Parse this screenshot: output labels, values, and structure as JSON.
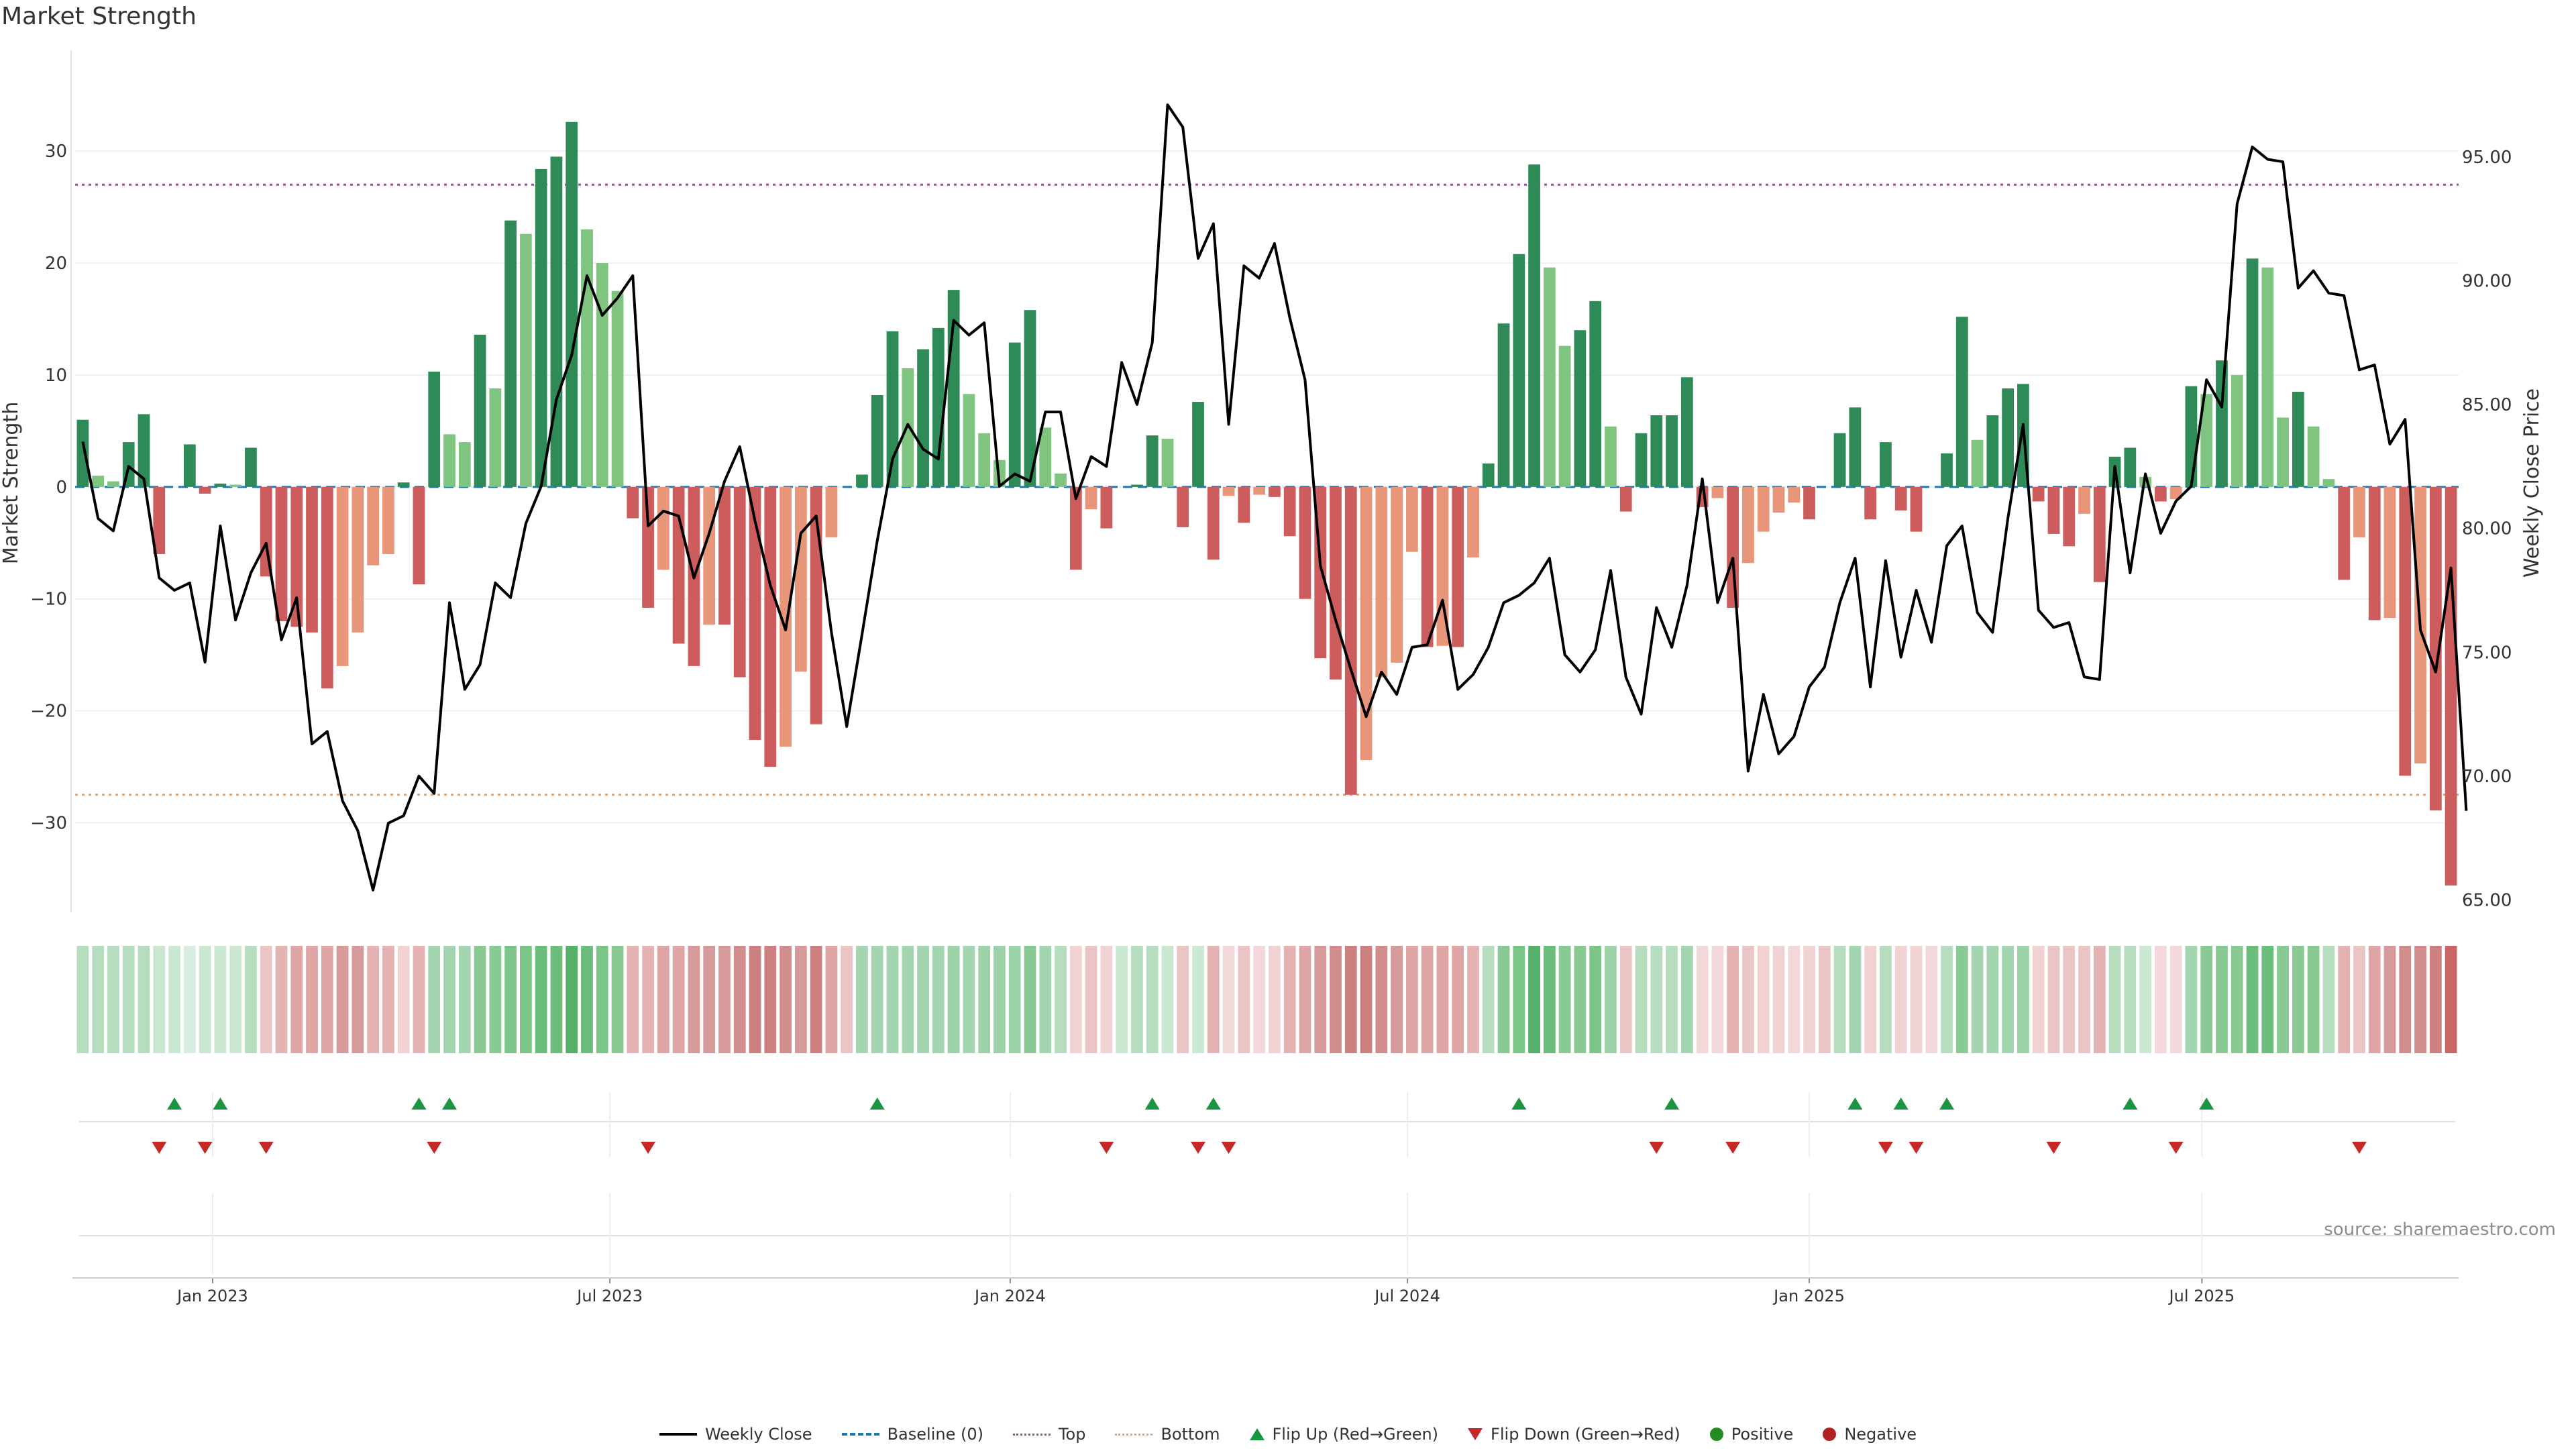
{
  "chart_data": {
    "type": "bar",
    "title": "Market Strength",
    "source": "source: sharemaestro.com",
    "y_left_label": "Market Strength",
    "y_right_label": "Weekly Close Price",
    "y_left_range": [
      -38,
      39
    ],
    "y_right_range": [
      64.5,
      99.3
    ],
    "y_left_ticks": [
      {
        "value": 30,
        "label": "30"
      },
      {
        "value": 20,
        "label": "20"
      },
      {
        "value": 10,
        "label": "10"
      },
      {
        "value": 0,
        "label": "0"
      },
      {
        "value": -10,
        "label": "−10"
      },
      {
        "value": -20,
        "label": "−20"
      },
      {
        "value": -30,
        "label": "−30"
      }
    ],
    "y_right_ticks": [
      {
        "value": 95,
        "label": "95.00"
      },
      {
        "value": 90,
        "label": "90.00"
      },
      {
        "value": 85,
        "label": "85.00"
      },
      {
        "value": 80,
        "label": "80.00"
      },
      {
        "value": 75,
        "label": "75.00"
      },
      {
        "value": 70,
        "label": "70.00"
      },
      {
        "value": 65,
        "label": "65.00"
      }
    ],
    "x_ticks": [
      {
        "index": 8.5,
        "label": "Jan 2023"
      },
      {
        "index": 34.5,
        "label": "Jul 2023"
      },
      {
        "index": 60.7,
        "label": "Jan 2024"
      },
      {
        "index": 86.7,
        "label": "Jul 2024"
      },
      {
        "index": 113,
        "label": "Jan 2025"
      },
      {
        "index": 138.7,
        "label": "Jul 2025"
      }
    ],
    "top_line": 27,
    "bottom_line": -27.5,
    "baseline": 0,
    "strength": [
      6,
      1,
      0.5,
      4,
      6.5,
      -6,
      0,
      3.8,
      -0.6,
      0.3,
      0.2,
      3.5,
      -8,
      -12,
      -12.5,
      -13,
      -18,
      -16,
      -13,
      -7,
      -6,
      0.4,
      -8.7,
      10.3,
      4.7,
      4,
      13.6,
      8.8,
      23.8,
      22.6,
      28.4,
      29.5,
      32.6,
      23,
      20,
      17.5,
      -2.8,
      -10.8,
      -7.4,
      -14,
      -16,
      -12.3,
      -12.3,
      -17,
      -22.6,
      -25,
      -23.2,
      -16.5,
      -21.2,
      -4.5,
      0,
      1.1,
      8.2,
      13.9,
      10.6,
      12.3,
      14.2,
      17.6,
      8.3,
      4.8,
      2.4,
      12.9,
      15.8,
      5.3,
      1.2,
      -7.4,
      -2,
      -3.7,
      0,
      0.2,
      4.6,
      4.3,
      -3.6,
      7.6,
      -6.5,
      -0.8,
      -3.2,
      -0.7,
      -0.9,
      -4.4,
      -10,
      -15.3,
      -17.2,
      -27.5,
      -24.4,
      -17,
      -15.7,
      -5.8,
      -14.3,
      -14.2,
      -14.3,
      -6.3,
      2.1,
      14.6,
      20.8,
      28.8,
      19.6,
      12.6,
      14,
      16.6,
      5.4,
      -2.2,
      4.8,
      6.4,
      6.4,
      9.8,
      -1.8,
      -1,
      -10.8,
      -6.8,
      -4,
      -2.3,
      -1.4,
      -2.9,
      0,
      4.8,
      7.1,
      -2.9,
      4,
      -2.1,
      -4,
      0,
      3,
      15.2,
      4.2,
      6.4,
      8.8,
      9.2,
      -1.3,
      -4.2,
      -5.3,
      -2.4,
      -8.5,
      2.7,
      3.5,
      0.9,
      -1.3,
      -1.1,
      9,
      8.3,
      11.3,
      10,
      20.4,
      19.6,
      6.2,
      8.5,
      5.4,
      0.7,
      -8.3,
      -4.5,
      -11.9,
      -11.7,
      -25.8,
      -24.7,
      -28.9,
      -35.6
    ],
    "weekly_close": [
      83.5,
      80.4,
      79.9,
      82.5,
      82,
      78,
      77.5,
      77.8,
      74.6,
      80.1,
      76.3,
      78.2,
      79.4,
      75.5,
      77.2,
      71.3,
      71.8,
      69,
      67.8,
      65.4,
      68.1,
      68.4,
      70,
      69.3,
      77,
      73.5,
      74.5,
      77.8,
      77.2,
      80.2,
      81.7,
      85.2,
      87,
      90.2,
      88.6,
      89.3,
      90.2,
      80.1,
      80.7,
      80.5,
      78,
      79.8,
      81.9,
      83.3,
      80.3,
      77.7,
      75.9,
      79.8,
      80.5,
      75.8,
      72,
      75.7,
      79.5,
      82.8,
      84.2,
      83.2,
      82.8,
      88.4,
      87.8,
      88.3,
      81.7,
      82.2,
      81.9,
      84.7,
      84.7,
      81.2,
      82.9,
      82.5,
      86.7,
      85,
      87.5,
      97.1,
      96.2,
      90.9,
      92.3,
      84.2,
      90.6,
      90.1,
      91.5,
      88.5,
      86,
      78.5,
      76.3,
      74.3,
      72.4,
      74.2,
      73.3,
      75.2,
      75.3,
      77.1,
      73.5,
      74.1,
      75.2,
      77,
      77.3,
      77.8,
      78.8,
      74.9,
      74.2,
      75.1,
      78.3,
      74,
      72.5,
      76.8,
      75.2,
      77.7,
      82,
      77,
      78.8,
      70.2,
      73.3,
      70.9,
      71.6,
      73.6,
      74.4,
      77,
      78.8,
      73.6,
      78.7,
      74.8,
      77.5,
      75.4,
      79.3,
      80.1,
      76.6,
      75.8,
      80.4,
      84.2,
      76.7,
      76,
      76.2,
      74,
      73.9,
      82.5,
      78.2,
      82.2,
      79.8,
      81.1,
      81.7,
      86,
      84.9,
      93.1,
      95.4,
      94.9,
      94.8,
      89.7,
      90.4,
      89.5,
      89.4,
      86.4,
      86.6,
      83.4,
      84.4,
      75.9,
      74.2,
      78.4,
      68.6
    ],
    "heat_strip": [
      "#b7ddbf",
      "#b7ddbf",
      "#b7ddbf",
      "#b7ddbf",
      "#b7ddbf",
      "#c9e7d0",
      "#cae8d2",
      "#d6ede0",
      "#c9e7d0",
      "#cae8d2",
      "#cae8d2",
      "#b7ddbf",
      "#ebc5c5",
      "#e5b2b2",
      "#dfa5a5",
      "#dfa5a5",
      "#dfa5a5",
      "#d79a9a",
      "#d79a9a",
      "#e5b2b2",
      "#e5b2b2",
      "#f0d2d2",
      "#e5b2b2",
      "#a3d6b0",
      "#a3d6b0",
      "#a3d6b0",
      "#88c994",
      "#88c994",
      "#7cc589",
      "#7cc589",
      "#6bbd7b",
      "#6bbd7b",
      "#56b068",
      "#6bbd7b",
      "#7cc589",
      "#88c994",
      "#e5b2b2",
      "#e5b2b2",
      "#dfa5a5",
      "#dfa5a5",
      "#d79a9a",
      "#d79a9a",
      "#d79a9a",
      "#d18c8c",
      "#cc8080",
      "#cc8080",
      "#d18c8c",
      "#d79a9a",
      "#cc8080",
      "#dfa5a5",
      "#ebc5c5",
      "#a3d6b0",
      "#a3d6b0",
      "#a3d6b0",
      "#a3d6b0",
      "#a3d6b0",
      "#a3d6b0",
      "#9bd2a8",
      "#a3d6b0",
      "#9bd2a8",
      "#9bd2a8",
      "#9bd2a8",
      "#88c994",
      "#a3d6b0",
      "#b7ddbf",
      "#f0d2d2",
      "#ebc5c5",
      "#f0d2d2",
      "#c9e7d0",
      "#b7ddbf",
      "#b7ddbf",
      "#c9e7d0",
      "#ebc5c5",
      "#cae8d2",
      "#e5b2b2",
      "#f2d8d8",
      "#ebc5c5",
      "#f2d8d8",
      "#f0d2d2",
      "#e5b2b2",
      "#dfa5a5",
      "#d79a9a",
      "#d18c8c",
      "#cc8080",
      "#cc8080",
      "#d18c8c",
      "#d79a9a",
      "#dfa5a5",
      "#dfa5a5",
      "#dfa5a5",
      "#dfa5a5",
      "#e5b2b2",
      "#b7ddbf",
      "#88c994",
      "#7cc589",
      "#56b068",
      "#6bbd7b",
      "#88c994",
      "#88c994",
      "#7cc589",
      "#9bd2a8",
      "#ebc5c5",
      "#b7ddbf",
      "#b7ddbf",
      "#b7ddbf",
      "#a3d6b0",
      "#f2d8d8",
      "#f2d8d8",
      "#e5b2b2",
      "#ebc5c5",
      "#f0d2d2",
      "#f0d2d2",
      "#f2d8d8",
      "#f0d2d2",
      "#ebc5c5",
      "#b7ddbf",
      "#a3d6b0",
      "#f0d2d2",
      "#b7ddbf",
      "#f0d2d2",
      "#f0d2d2",
      "#f2d8d8",
      "#b7ddbf",
      "#88c994",
      "#a3d6b0",
      "#a3d6b0",
      "#a3d6b0",
      "#9bd2a8",
      "#f0d2d2",
      "#ebc5c5",
      "#ebc5c5",
      "#ebc5c5",
      "#e5b2b2",
      "#b7ddbf",
      "#b7ddbf",
      "#cae8d2",
      "#f2d8d8",
      "#f2d8d8",
      "#a3d6b0",
      "#88c994",
      "#88c994",
      "#88c994",
      "#6bbd7b",
      "#6bbd7b",
      "#88c994",
      "#88c994",
      "#88c994",
      "#b7ddbf",
      "#e5b2b2",
      "#ebc5c5",
      "#dfa5a5",
      "#d79a9a",
      "#d18c8c",
      "#d18c8c",
      "#cc8080",
      "#cc6666"
    ],
    "flip_up_indices": [
      6,
      9,
      22,
      24,
      52,
      70,
      74,
      94,
      104,
      116,
      119,
      122,
      134,
      139
    ],
    "flip_down_indices": [
      5,
      8,
      12,
      23,
      37,
      67,
      73,
      75,
      103,
      108,
      118,
      120,
      129,
      137,
      149
    ],
    "legend": [
      "Weekly Close",
      "Baseline (0)",
      "Top",
      "Bottom",
      "Flip Up (Red→Green)",
      "Flip Down (Green→Red)",
      "Positive",
      "Negative"
    ],
    "colors": {
      "bar_dark_green": "#2e8b57",
      "bar_light_green": "#7fc47f",
      "bar_dark_red": "#cd5c5c",
      "bar_light_red": "#e8967a",
      "top_line": "#9b4f96",
      "bottom_line": "#e8a06a",
      "baseline": "#1f77b4",
      "flip_up": "#1a9641",
      "flip_down": "#c62828",
      "price_line": "#000000"
    }
  }
}
